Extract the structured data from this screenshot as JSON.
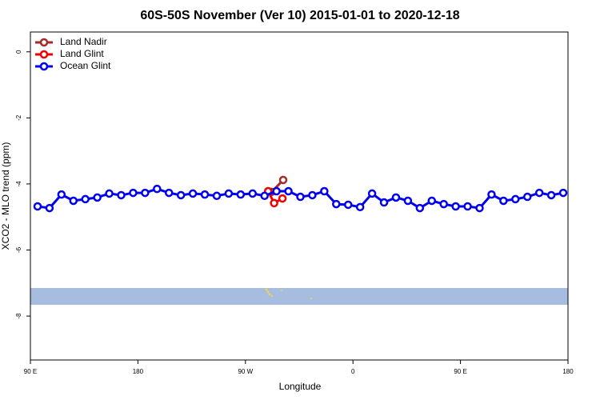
{
  "chart_data": {
    "type": "line",
    "title": "60S-50S November (Ver 10)   2015-01-01 to 2020-12-18",
    "x_label": "Longitude",
    "y_label": "XCO2 - MLO trend (ppm)",
    "xlim": [
      90,
      540
    ],
    "xticks": [
      {
        "value": 90,
        "label": "90 E"
      },
      {
        "value": 180,
        "label": "180"
      },
      {
        "value": 270,
        "label": "90 W"
      },
      {
        "value": 360,
        "label": "0"
      },
      {
        "value": 450,
        "label": "90 E"
      },
      {
        "value": 540,
        "label": "180"
      }
    ],
    "ylim": [
      -9.33,
      0.6
    ],
    "yticks": [
      0,
      -2,
      -4,
      -6,
      -8
    ],
    "legend": "top-left",
    "series": [
      {
        "name": "Land Nadir",
        "color": "#a52a2a",
        "x": [
          292,
          301.6
        ],
        "values": [
          -4.24,
          -3.88
        ]
      },
      {
        "name": "Land Glint",
        "color": "#ee0000",
        "x": [
          289,
          294,
          301
        ],
        "values": [
          -4.22,
          -4.58,
          -4.44
        ]
      },
      {
        "name": "Ocean Glint",
        "color": "#0000ee",
        "x": [
          96,
          106,
          116,
          126,
          136,
          146,
          156,
          166,
          176,
          186,
          196,
          206,
          216,
          226,
          236,
          246,
          256,
          266,
          276,
          286,
          296,
          306,
          316,
          326,
          336,
          346,
          356,
          366,
          376,
          386,
          396,
          406,
          416,
          426,
          436,
          446,
          456,
          466,
          476,
          486,
          496,
          506,
          516,
          526,
          536
        ],
        "values": [
          -4.68,
          -4.73,
          -4.32,
          -4.51,
          -4.46,
          -4.41,
          -4.29,
          -4.34,
          -4.27,
          -4.27,
          -4.15,
          -4.27,
          -4.34,
          -4.29,
          -4.32,
          -4.36,
          -4.29,
          -4.32,
          -4.29,
          -4.36,
          -4.22,
          -4.22,
          -4.39,
          -4.34,
          -4.22,
          -4.61,
          -4.63,
          -4.7,
          -4.29,
          -4.56,
          -4.41,
          -4.51,
          -4.73,
          -4.51,
          -4.61,
          -4.68,
          -4.68,
          -4.73,
          -4.32,
          -4.51,
          -4.46,
          -4.39,
          -4.27,
          -4.34,
          -4.27
        ]
      }
    ]
  }
}
